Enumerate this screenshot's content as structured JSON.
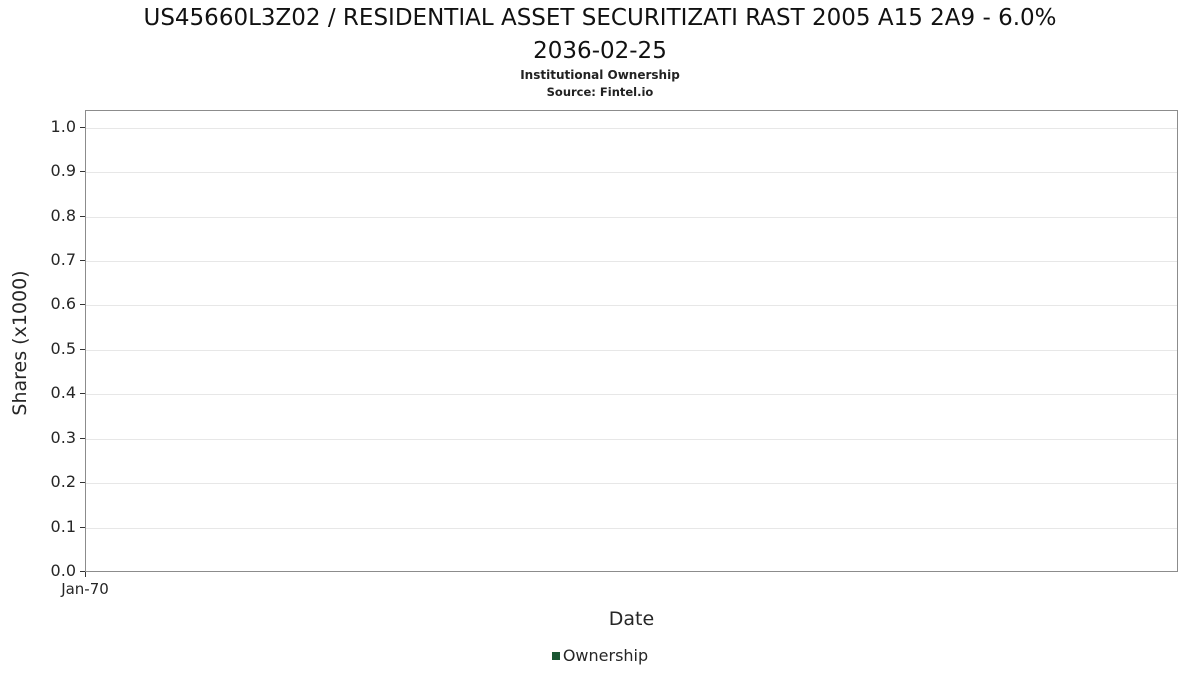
{
  "title_line1": "US45660L3Z02 / RESIDENTIAL ASSET SECURITIZATI RAST 2005 A15 2A9 - 6.0%",
  "title_line2": "2036-02-25",
  "subtitle": "Institutional Ownership",
  "source": "Source: Fintel.io",
  "legend": {
    "label": "Ownership",
    "color": "#1a5632"
  },
  "colors": {
    "grid": "#e7e7e7",
    "plot_border": "#8c8c8c",
    "tick": "#333333"
  },
  "chart_data": {
    "type": "line",
    "title": "US45660L3Z02 / RESIDENTIAL ASSET SECURITIZATI RAST 2005 A15 2A9 - 6.0% 2036-02-25",
    "subtitle": "Institutional Ownership",
    "source": "Source: Fintel.io",
    "xlabel": "Date",
    "ylabel": "Shares (x1000)",
    "xticks": [
      "Jan-70"
    ],
    "yticks": [
      "0.0",
      "0.1",
      "0.2",
      "0.3",
      "0.4",
      "0.5",
      "0.6",
      "0.7",
      "0.8",
      "0.9",
      "1.0"
    ],
    "ylim": [
      0,
      1.04
    ],
    "grid": "horizontal",
    "legend_position": "bottom",
    "series": [
      {
        "name": "Ownership",
        "x": [],
        "values": []
      }
    ],
    "note": "empty plot - no data points rendered"
  }
}
